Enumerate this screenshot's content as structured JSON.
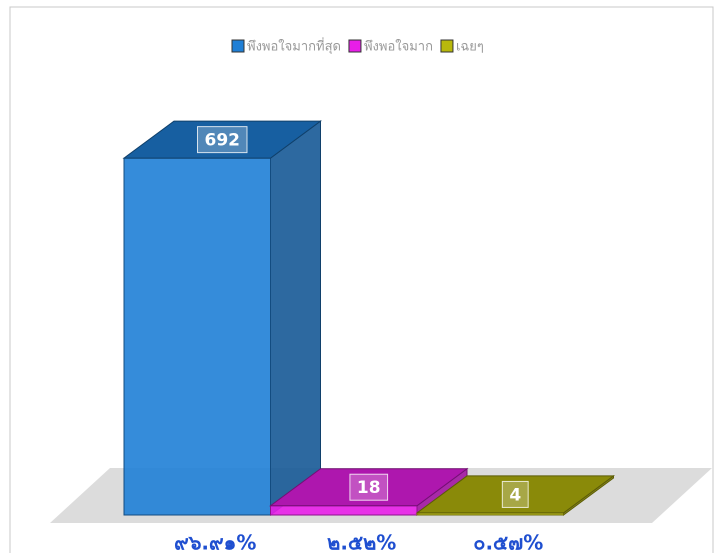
{
  "chart_data": {
    "type": "bar3d",
    "categories": [
      "๙๖.๙๑%",
      "๒.๕๒%",
      "๐.๕๗%"
    ],
    "values": [
      692,
      18,
      4
    ],
    "colors": [
      "#1f7fd6",
      "#e81ee8",
      "#b8b80c"
    ],
    "legend": [
      "พึงพอใจมากที่สุด",
      "พึงพอใจมาก",
      "เฉยๆ"
    ],
    "ylim": [
      0,
      700
    ]
  }
}
